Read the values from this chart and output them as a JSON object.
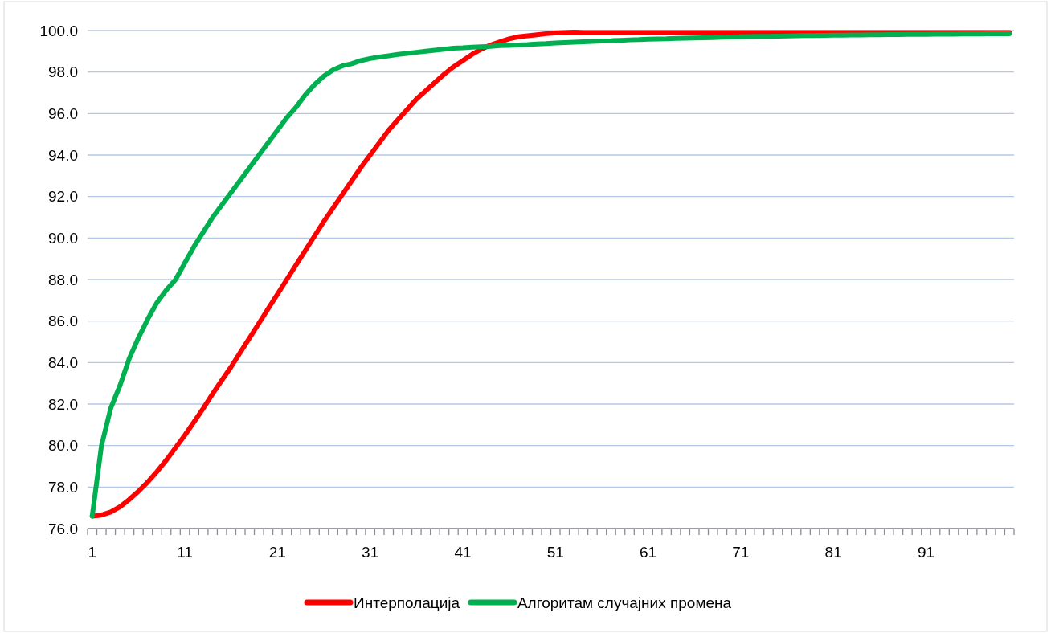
{
  "chart_data": {
    "type": "line",
    "categories": [
      "1",
      null,
      null,
      null,
      null,
      null,
      null,
      null,
      null,
      null,
      "11",
      null,
      null,
      null,
      null,
      null,
      null,
      null,
      null,
      null,
      "21",
      null,
      null,
      null,
      null,
      null,
      null,
      null,
      null,
      null,
      "31",
      null,
      null,
      null,
      null,
      null,
      null,
      null,
      null,
      null,
      "41",
      null,
      null,
      null,
      null,
      null,
      null,
      null,
      null,
      null,
      "51",
      null,
      null,
      null,
      null,
      null,
      null,
      null,
      null,
      null,
      "61",
      null,
      null,
      null,
      null,
      null,
      null,
      null,
      null,
      null,
      "71",
      null,
      null,
      null,
      null,
      null,
      null,
      null,
      null,
      null,
      "81",
      null,
      null,
      null,
      null,
      null,
      null,
      null,
      null,
      null,
      "91",
      null,
      null,
      null,
      null,
      null,
      null,
      null,
      null,
      null
    ],
    "series": [
      {
        "name": "Интерполација",
        "color": "#ff0000",
        "values": [
          76.6,
          76.65,
          76.8,
          77.05,
          77.4,
          77.8,
          78.25,
          78.75,
          79.3,
          79.9,
          80.5,
          81.15,
          81.8,
          82.5,
          83.15,
          83.8,
          84.5,
          85.2,
          85.9,
          86.6,
          87.3,
          88.0,
          88.7,
          89.4,
          90.1,
          90.8,
          91.45,
          92.1,
          92.75,
          93.4,
          94.0,
          94.6,
          95.2,
          95.7,
          96.2,
          96.7,
          97.1,
          97.5,
          97.9,
          98.25,
          98.55,
          98.85,
          99.1,
          99.3,
          99.45,
          99.6,
          99.7,
          99.75,
          99.8,
          99.85,
          99.88,
          99.9,
          99.92,
          99.9,
          99.9,
          99.9,
          99.9,
          99.9,
          99.9,
          99.9,
          99.9,
          99.9,
          99.9,
          99.9,
          99.9,
          99.9,
          99.9,
          99.9,
          99.9,
          99.9,
          99.9,
          99.9,
          99.9,
          99.9,
          99.9,
          99.9,
          99.9,
          99.9,
          99.9,
          99.9,
          99.9,
          99.9,
          99.9,
          99.9,
          99.9,
          99.9,
          99.9,
          99.9,
          99.9,
          99.9,
          99.9,
          99.9,
          99.9,
          99.9,
          99.9,
          99.9,
          99.9,
          99.9,
          99.9,
          99.9
        ]
      },
      {
        "name": "Алгоритам случајних промена",
        "color": "#00b050",
        "values": [
          76.6,
          80.0,
          81.8,
          82.9,
          84.2,
          85.2,
          86.1,
          86.9,
          87.5,
          88.0,
          88.8,
          89.6,
          90.3,
          91.0,
          91.6,
          92.2,
          92.8,
          93.4,
          94.0,
          94.6,
          95.2,
          95.8,
          96.3,
          96.9,
          97.4,
          97.8,
          98.1,
          98.3,
          98.4,
          98.55,
          98.65,
          98.72,
          98.78,
          98.85,
          98.9,
          98.95,
          99.0,
          99.05,
          99.1,
          99.15,
          99.17,
          99.2,
          99.22,
          99.24,
          99.27,
          99.28,
          99.3,
          99.32,
          99.35,
          99.37,
          99.4,
          99.42,
          99.44,
          99.46,
          99.48,
          99.5,
          99.51,
          99.53,
          99.55,
          99.56,
          99.58,
          99.59,
          99.6,
          99.62,
          99.63,
          99.64,
          99.65,
          99.66,
          99.68,
          99.69,
          99.7,
          99.71,
          99.72,
          99.72,
          99.73,
          99.74,
          99.75,
          99.76,
          99.76,
          99.77,
          99.78,
          99.78,
          99.79,
          99.79,
          99.8,
          99.8,
          99.81,
          99.81,
          99.82,
          99.82,
          99.82,
          99.83,
          99.83,
          99.83,
          99.84,
          99.84,
          99.84,
          99.85,
          99.85,
          99.85
        ]
      }
    ],
    "ylim": [
      76,
      100
    ],
    "yticks": [
      {
        "value": 76,
        "label": "76.0"
      },
      {
        "value": 78,
        "label": "78.0"
      },
      {
        "value": 80,
        "label": "80.0"
      },
      {
        "value": 82,
        "label": "82.0"
      },
      {
        "value": 84,
        "label": "84.0"
      },
      {
        "value": 86,
        "label": "86.0"
      },
      {
        "value": 88,
        "label": "88.0"
      },
      {
        "value": 90,
        "label": "90.0"
      },
      {
        "value": 92,
        "label": "92.0"
      },
      {
        "value": 94,
        "label": "94.0"
      },
      {
        "value": 96,
        "label": "96.0"
      },
      {
        "value": 98,
        "label": "98.0"
      },
      {
        "value": 100,
        "label": "100.0"
      }
    ],
    "grid": "y",
    "legend": "bottom"
  }
}
